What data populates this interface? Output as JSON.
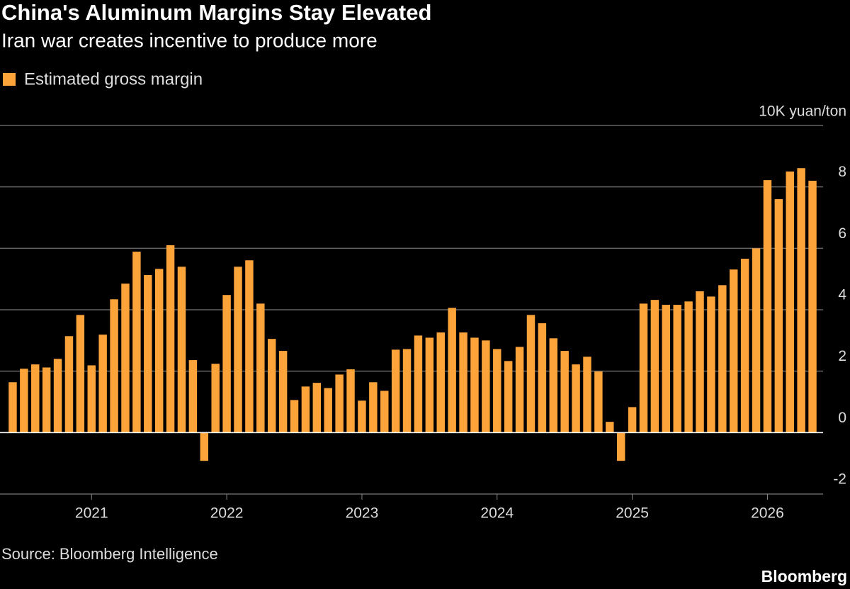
{
  "chart_data": {
    "type": "bar",
    "title": "China's Aluminum Margins Stay Elevated",
    "subtitle": "Iran war creates incentive to produce more",
    "y_label": "10K yuan/ton",
    "source": "Source: Bloomberg Intelligence",
    "brand": "Bloomberg",
    "categories": [
      null,
      null,
      null,
      null,
      null,
      null,
      null,
      "2021",
      null,
      null,
      null,
      null,
      null,
      null,
      null,
      null,
      null,
      null,
      null,
      "2022",
      null,
      null,
      null,
      null,
      null,
      null,
      null,
      null,
      null,
      null,
      null,
      "2023",
      null,
      null,
      null,
      null,
      null,
      null,
      null,
      null,
      null,
      null,
      null,
      "2024",
      null,
      null,
      null,
      null,
      null,
      null,
      null,
      null,
      null,
      null,
      null,
      "2025",
      null,
      null,
      null,
      null,
      null,
      null,
      null,
      null,
      null,
      null,
      null,
      "2026",
      null,
      null,
      null,
      null
    ],
    "series": [
      {
        "name": "Estimated gross margin",
        "color": "#fca33a",
        "values": [
          1.64,
          2.08,
          2.22,
          2.12,
          2.4,
          3.14,
          3.83,
          2.19,
          3.19,
          4.34,
          4.85,
          5.89,
          5.13,
          5.33,
          6.1,
          5.4,
          2.36,
          -0.92,
          2.24,
          4.48,
          5.4,
          5.61,
          4.2,
          3.05,
          2.66,
          1.06,
          1.5,
          1.62,
          1.45,
          1.89,
          2.06,
          1.04,
          1.64,
          1.36,
          2.7,
          2.72,
          3.16,
          3.09,
          3.26,
          4.06,
          3.26,
          3.09,
          3.0,
          2.72,
          2.33,
          2.79,
          3.83,
          3.56,
          3.07,
          2.66,
          2.22,
          2.47,
          1.99,
          0.35,
          -0.92,
          0.83,
          4.2,
          4.32,
          4.16,
          4.16,
          4.27,
          4.6,
          4.43,
          4.8,
          5.31,
          5.66,
          6.0,
          8.22,
          7.6,
          8.5,
          8.61,
          8.2
        ]
      }
    ],
    "ylim": [
      -2,
      10
    ],
    "yticks": [
      -2,
      0,
      2,
      4,
      6,
      8
    ],
    "grid": true
  }
}
